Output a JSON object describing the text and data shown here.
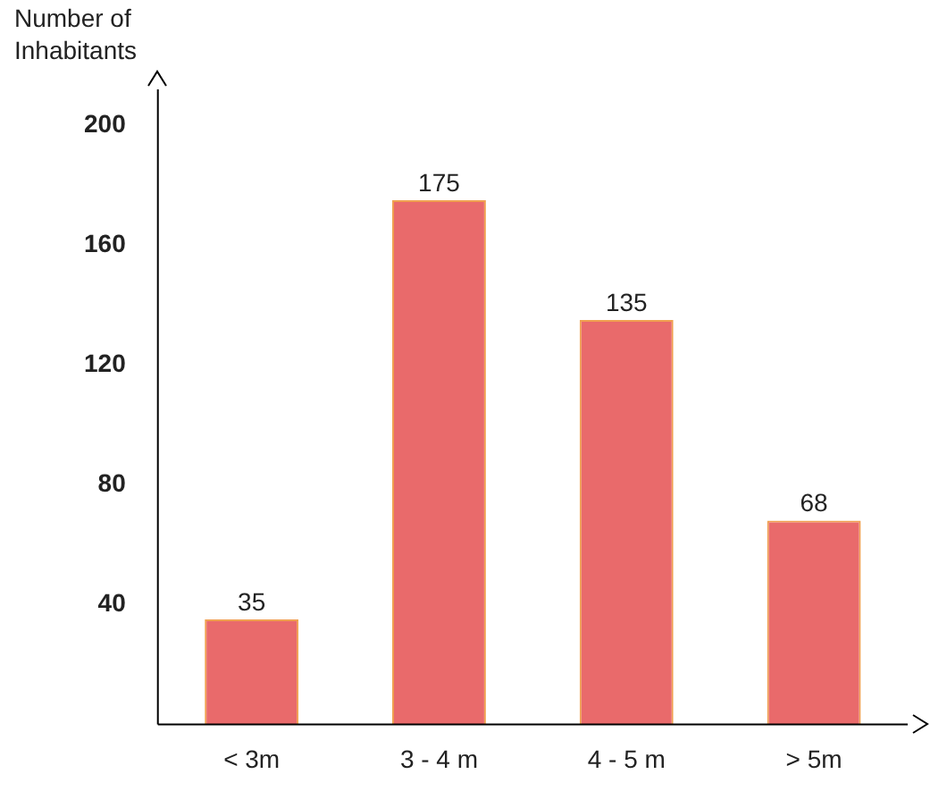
{
  "chart_data": {
    "type": "bar",
    "ylabel": "Number of Inhabitants",
    "categories": [
      "< 3m",
      "3 - 4 m",
      "4 - 5 m",
      "> 5m"
    ],
    "values": [
      35,
      175,
      135,
      68
    ],
    "color": "#e96a6b",
    "ylim": [
      0,
      212
    ],
    "yticks": [
      40,
      80,
      120,
      160,
      200
    ],
    "grid": false,
    "legend": false,
    "data_labels": true
  }
}
